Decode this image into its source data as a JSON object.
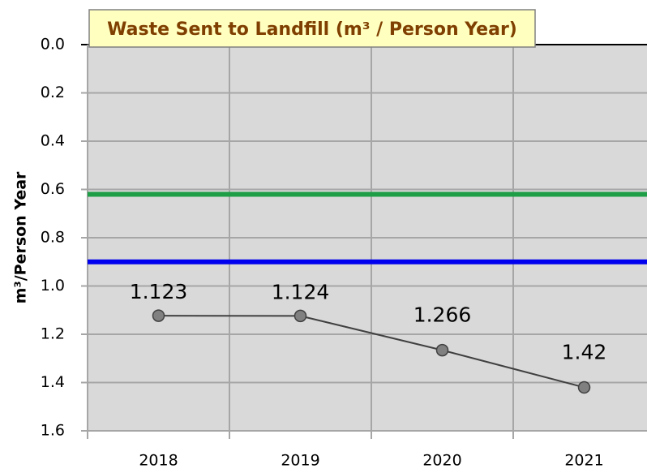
{
  "chart_data": {
    "type": "line",
    "title": "Waste Sent to Landfill (m³ / Person Year)",
    "y_label": "m³/Person Year",
    "categories": [
      "2018",
      "2019",
      "2020",
      "2021"
    ],
    "series": [
      {
        "color": "#808080",
        "line_color": "#404040",
        "values": [
          1.123,
          1.124,
          1.266,
          1.42
        ]
      }
    ],
    "reference_lines": [
      {
        "value": 0.62,
        "color": "#1e9e47"
      },
      {
        "value": 0.9,
        "color": "#0000ee"
      }
    ],
    "ylim": [
      0,
      1.6
    ],
    "inverted": true,
    "yticks": [
      {
        "value": 0,
        "label": "0.0"
      },
      0.2,
      0.4,
      0.6,
      0.8,
      {
        "value": 1,
        "label": "1.0"
      },
      1.2,
      1.4,
      1.6
    ],
    "grid": true,
    "background": "#d9d9d9"
  }
}
